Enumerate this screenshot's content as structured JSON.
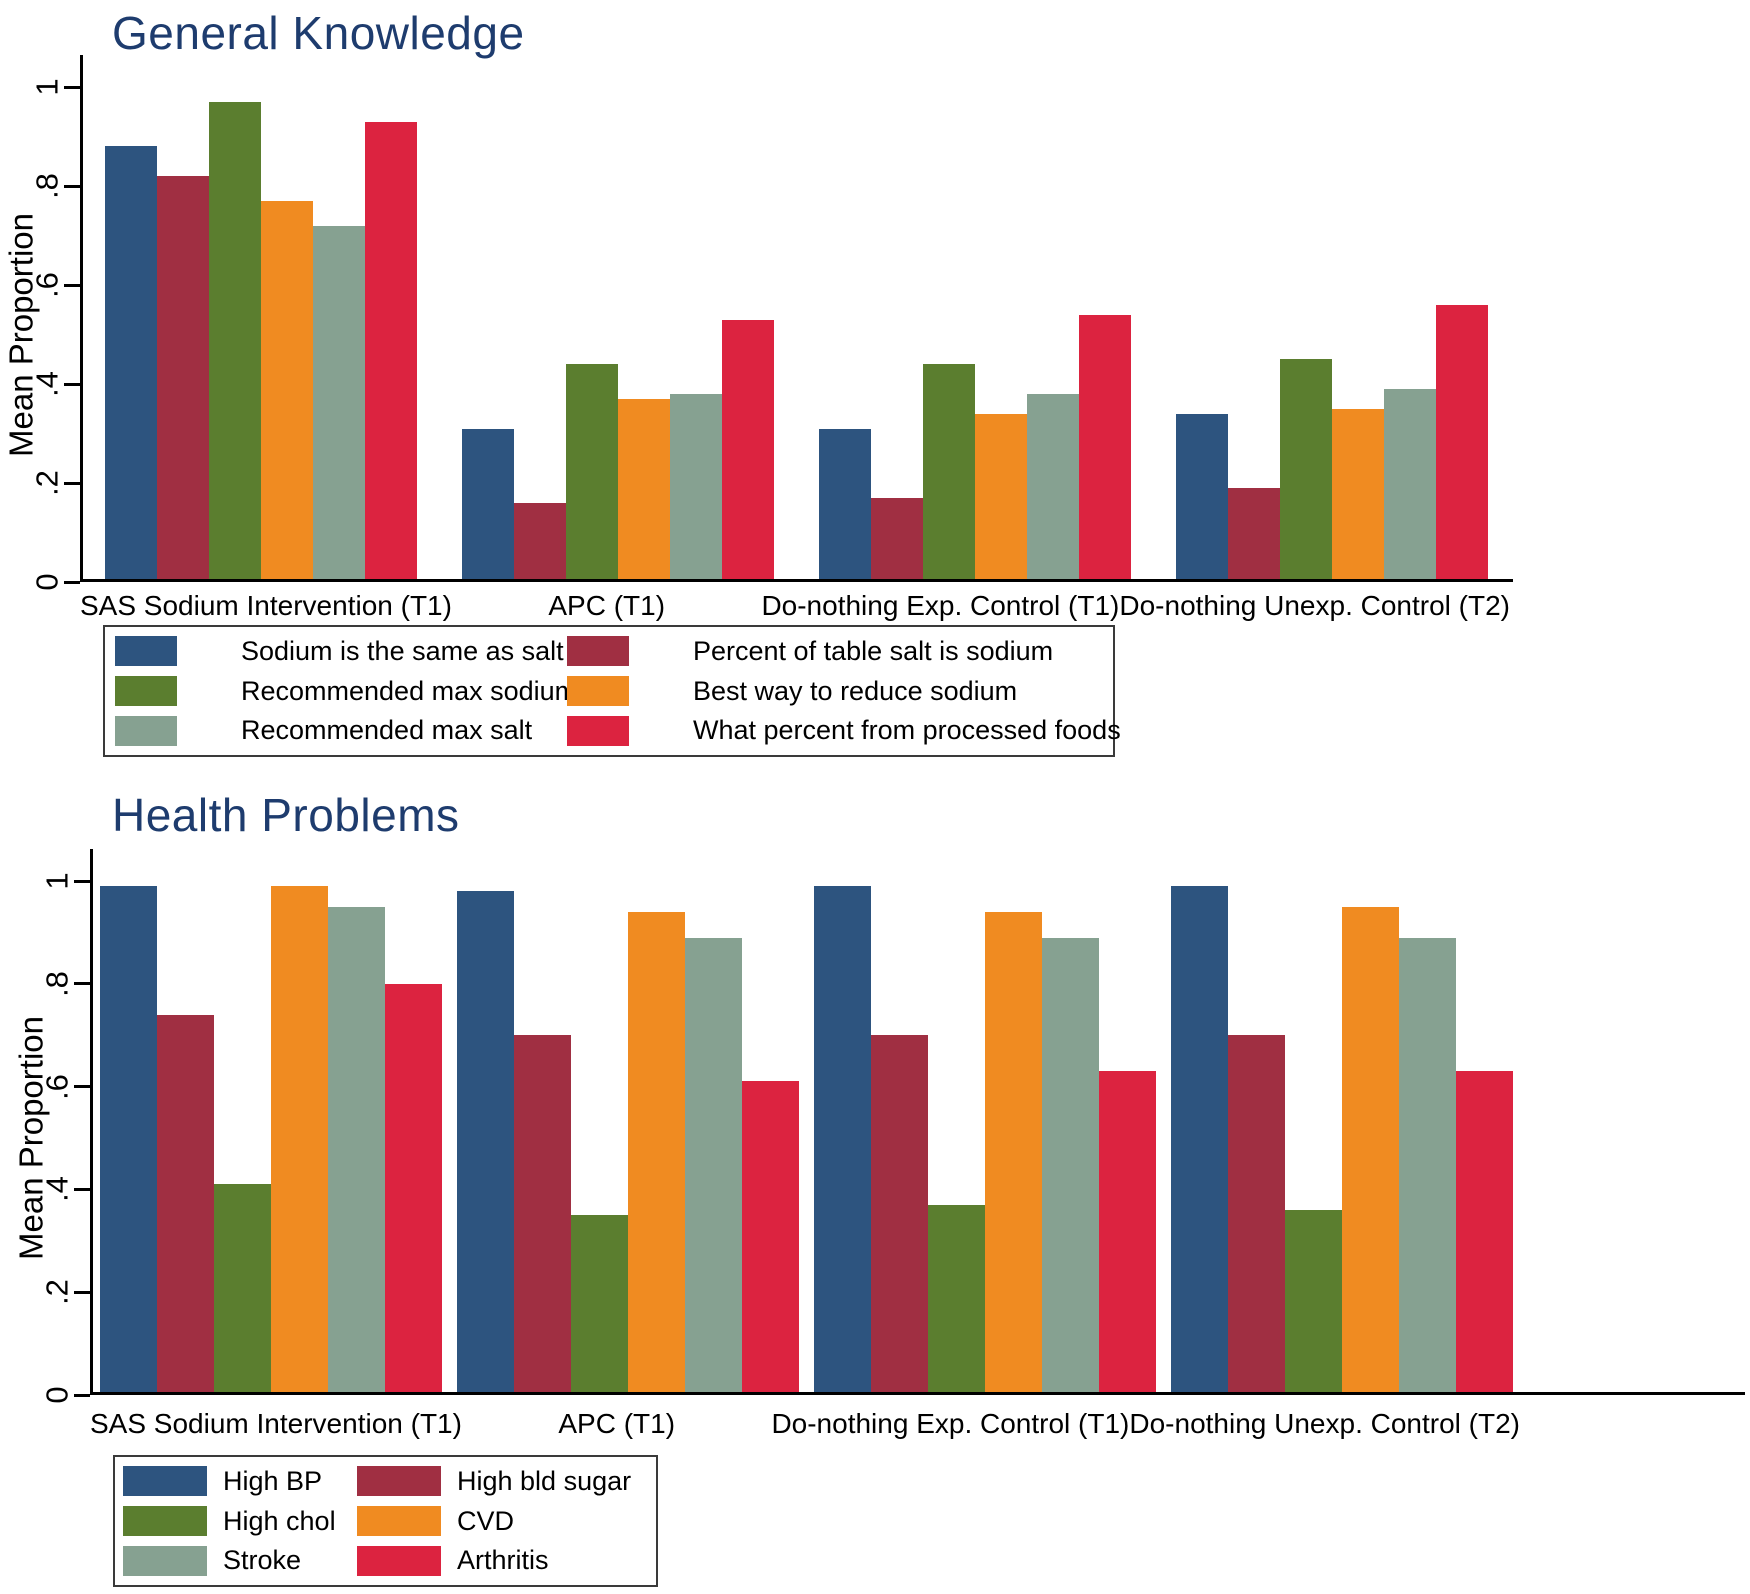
{
  "accent_colors": {
    "title_navy": "#1e3c6e",
    "axis_black": "#000000"
  },
  "chart_data": [
    {
      "type": "bar",
      "title": "General Knowledge",
      "xlabel": "",
      "ylabel": "Mean Proportion",
      "ylim": [
        0,
        1
      ],
      "grid": false,
      "legend_position": "below-left-box",
      "yticks": [
        0,
        0.2,
        0.4,
        0.6,
        0.8,
        1
      ],
      "ytick_labels": [
        "0",
        ".2",
        ".4",
        ".6",
        ".8",
        "1"
      ],
      "categories": [
        "SAS Sodium Intervention (T1)",
        "APC (T1)",
        "Do-nothing Exp. Control (T1)",
        "Do-nothing Unexp. Control (T2)"
      ],
      "series": [
        {
          "name": "Sodium is the same as salt",
          "color": "#2d547f",
          "values": [
            0.88,
            0.31,
            0.31,
            0.34
          ]
        },
        {
          "name": "Percent of table salt is sodium",
          "color": "#a02f42",
          "values": [
            0.82,
            0.16,
            0.17,
            0.19
          ]
        },
        {
          "name": "Recommended max sodium",
          "color": "#5b7e2f",
          "values": [
            0.97,
            0.44,
            0.44,
            0.45
          ]
        },
        {
          "name": "Best way to reduce sodium",
          "color": "#f08b21",
          "values": [
            0.77,
            0.37,
            0.34,
            0.35
          ]
        },
        {
          "name": "Recommended max salt",
          "color": "#86a191",
          "values": [
            0.72,
            0.38,
            0.38,
            0.39
          ]
        },
        {
          "name": "What percent from processed foods",
          "color": "#dc2340",
          "values": [
            0.93,
            0.53,
            0.54,
            0.56
          ]
        }
      ]
    },
    {
      "type": "bar",
      "title": "Health Problems",
      "xlabel": "",
      "ylabel": "Mean Proportion",
      "ylim": [
        0,
        1
      ],
      "grid": false,
      "legend_position": "below-left-box",
      "yticks": [
        0,
        0.2,
        0.4,
        0.6,
        0.8,
        1
      ],
      "ytick_labels": [
        "0",
        ".2",
        ".4",
        ".6",
        ".8",
        "1"
      ],
      "categories": [
        "SAS Sodium Intervention (T1)",
        "APC (T1)",
        "Do-nothing Exp. Control (T1)",
        "Do-nothing Unexp. Control (T2)"
      ],
      "series": [
        {
          "name": "High BP",
          "color": "#2d547f",
          "values": [
            0.99,
            0.98,
            0.99,
            0.99
          ]
        },
        {
          "name": "High bld sugar",
          "color": "#a02f42",
          "values": [
            0.74,
            0.7,
            0.7,
            0.7
          ]
        },
        {
          "name": "High chol",
          "color": "#5b7e2f",
          "values": [
            0.41,
            0.35,
            0.37,
            0.36
          ]
        },
        {
          "name": "CVD",
          "color": "#f08b21",
          "values": [
            0.99,
            0.94,
            0.94,
            0.95
          ]
        },
        {
          "name": "Stroke",
          "color": "#86a191",
          "values": [
            0.95,
            0.89,
            0.89,
            0.89
          ]
        },
        {
          "name": "Arthritis",
          "color": "#dc2340",
          "values": [
            0.8,
            0.61,
            0.63,
            0.63
          ]
        }
      ]
    }
  ]
}
